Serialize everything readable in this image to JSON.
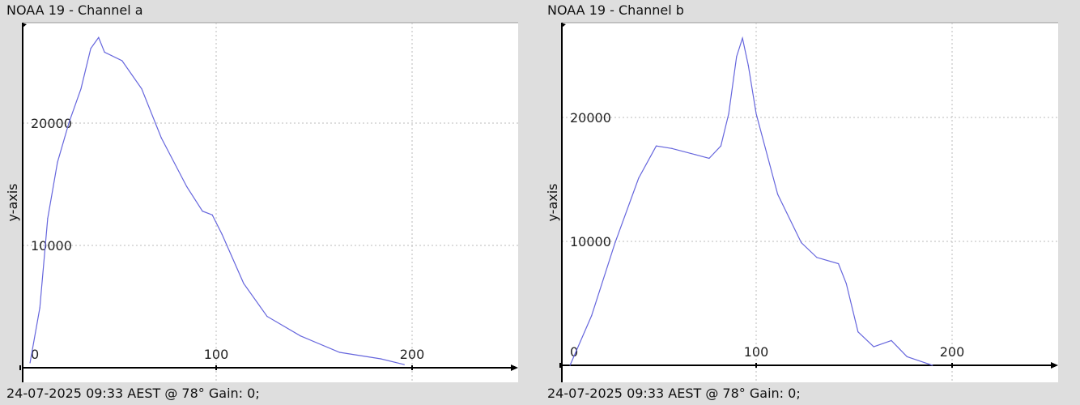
{
  "charts_meta": [
    {
      "title": "NOAA 19 - Channel a",
      "footer": "24-07-2025 09:33 AEST @ 78° Gain: 0;"
    },
    {
      "title": "NOAA 19 - Channel b",
      "footer": "24-07-2025 09:33 AEST @ 78° Gain: 0;"
    }
  ],
  "chart_data": [
    {
      "type": "line",
      "title": "NOAA 19 - Channel a",
      "xlabel": "",
      "ylabel": "y-axis",
      "xlim": [
        0,
        250
      ],
      "ylim": [
        0,
        27500
      ],
      "xticks": [
        0,
        100,
        200
      ],
      "yticks": [
        10000,
        20000
      ],
      "grid": true,
      "color": "#6666dd",
      "x": [
        5,
        10,
        14,
        19,
        25,
        31,
        36,
        40,
        43,
        52,
        62,
        72,
        85,
        93,
        98,
        103,
        114,
        126,
        143,
        163,
        184,
        196
      ],
      "y": [
        400,
        4900,
        12200,
        16800,
        20100,
        22800,
        26100,
        27000,
        25800,
        25100,
        22800,
        18800,
        14800,
        12800,
        12500,
        10900,
        6900,
        4200,
        2600,
        1260,
        730,
        260
      ]
    },
    {
      "type": "line",
      "title": "NOAA 19 - Channel b",
      "xlabel": "",
      "ylabel": "y-axis",
      "xlim": [
        0,
        250
      ],
      "ylim": [
        0,
        27500
      ],
      "xticks": [
        0,
        100,
        200
      ],
      "yticks": [
        10000,
        20000
      ],
      "grid": true,
      "color": "#6666dd",
      "x": [
        5,
        16,
        28,
        40,
        49,
        57,
        69,
        76,
        82,
        86,
        90,
        93,
        96,
        100,
        111,
        123,
        131,
        142,
        146,
        152,
        160,
        169,
        177,
        190
      ],
      "y": [
        0,
        4000,
        9900,
        15100,
        17700,
        17500,
        17000,
        16700,
        17700,
        20300,
        24900,
        26400,
        24200,
        20300,
        13800,
        9900,
        8700,
        8200,
        6600,
        2700,
        1500,
        2000,
        700,
        0
      ]
    }
  ]
}
